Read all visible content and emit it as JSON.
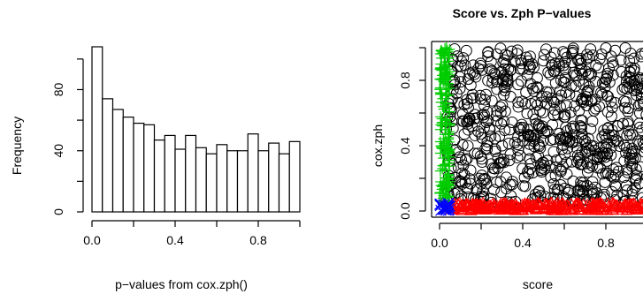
{
  "chart_data": [
    {
      "type": "bar",
      "subtype": "histogram",
      "title": "",
      "xlabel": "p−values from cox.zph()",
      "ylabel": "Frequency",
      "bin_width": 0.05,
      "bins_start": [
        0.0,
        0.05,
        0.1,
        0.15,
        0.2,
        0.25,
        0.3,
        0.35,
        0.4,
        0.45,
        0.5,
        0.55,
        0.6,
        0.65,
        0.7,
        0.75,
        0.8,
        0.85,
        0.9,
        0.95
      ],
      "values": [
        108,
        74,
        67,
        62,
        58,
        57,
        47,
        50,
        41,
        50,
        42,
        38,
        44,
        40,
        40,
        51,
        40,
        45,
        38,
        46
      ],
      "xlim": [
        0,
        1
      ],
      "ylim": [
        0,
        108
      ],
      "x_ticks": [
        "0.0",
        "0.4",
        "0.8"
      ],
      "y_ticks": [
        "0",
        "40",
        "80"
      ],
      "bar_fill": "#ffffff",
      "bar_stroke": "#000000"
    },
    {
      "type": "scatter",
      "title": "Score vs. Zph P−values",
      "xlabel": "score",
      "ylabel": "cox.zph",
      "xlim": [
        0,
        1
      ],
      "ylim": [
        0,
        1
      ],
      "x_ticks": [
        "0.0",
        "0.4",
        "0.8"
      ],
      "y_ticks": [
        "0.0",
        "0.4",
        "0.8"
      ],
      "series": [
        {
          "marker": "circle",
          "color": "#000000",
          "x_range": [
            0.03,
            1.0
          ],
          "y_range": [
            0.05,
            1.0
          ],
          "count": 750
        },
        {
          "marker": "triangle",
          "color": "#ff0000",
          "x_range": [
            0.05,
            1.0
          ],
          "y_range": [
            0.0,
            0.05
          ],
          "count": 320
        },
        {
          "marker": "plus",
          "color": "#00cc00",
          "x_range": [
            0.0,
            0.05
          ],
          "y_range": [
            0.05,
            1.0
          ],
          "count": 170
        },
        {
          "marker": "x",
          "color": "#0000ff",
          "x_range": [
            0.0,
            0.05
          ],
          "y_range": [
            0.0,
            0.05
          ],
          "count": 25
        }
      ]
    }
  ]
}
